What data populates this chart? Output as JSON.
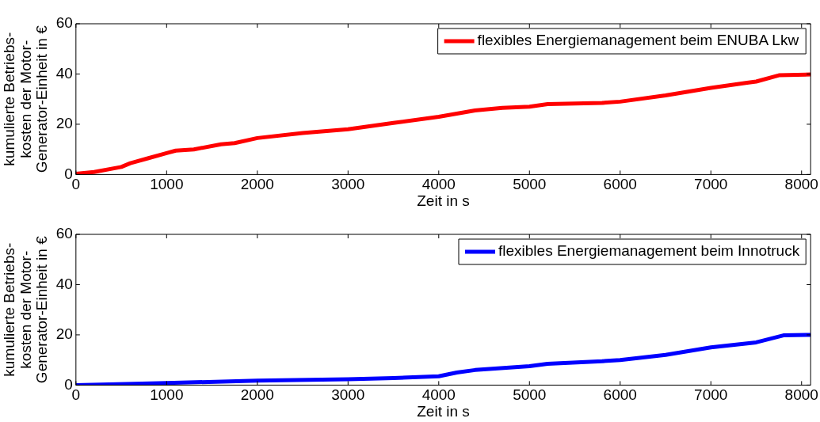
{
  "chart_data": [
    {
      "type": "line",
      "xlabel": "Zeit in s",
      "ylabel": "kumulierte Betriebs-\nkosten der Motor-\nGenerator-Einheit in €",
      "xlim": [
        0,
        8100
      ],
      "xticks": [
        0,
        1000,
        2000,
        3000,
        4000,
        5000,
        6000,
        7000,
        8000
      ],
      "ylim": [
        0,
        60
      ],
      "yticks": [
        0,
        20,
        40,
        60
      ],
      "legend": "top right",
      "grid": false,
      "marker": "none",
      "line_style": "solid",
      "series": [
        {
          "name": "flexibles Energiemanagement beim ENUBA Lkw",
          "color": "#ff0000",
          "x": [
            0,
            200,
            500,
            600,
            800,
            1000,
            1100,
            1300,
            1600,
            1750,
            2000,
            2500,
            3000,
            3500,
            4000,
            4400,
            4700,
            5000,
            5200,
            5800,
            6000,
            6500,
            7000,
            7400,
            7500,
            7750,
            8100
          ],
          "values": [
            0.3,
            1,
            3,
            4.5,
            6.5,
            8.5,
            9.5,
            10,
            12,
            12.5,
            14.5,
            16.5,
            18,
            20.5,
            23,
            25.5,
            26.5,
            27,
            28,
            28.5,
            29,
            31.5,
            34.5,
            36.5,
            37,
            39.5,
            39.8
          ]
        }
      ]
    },
    {
      "type": "line",
      "xlabel": "Zeit in s",
      "ylabel": "kumulierte Betriebs-\nkosten der Motor-\nGenerator-Einheit in €",
      "xlim": [
        0,
        8100
      ],
      "xticks": [
        0,
        1000,
        2000,
        3000,
        4000,
        5000,
        6000,
        7000,
        8000
      ],
      "ylim": [
        0,
        60
      ],
      "yticks": [
        0,
        20,
        40,
        60
      ],
      "legend": "top right",
      "grid": false,
      "marker": "none",
      "line_style": "solid",
      "series": [
        {
          "name": "flexibles Energiemanagement beim Innotruck",
          "color": "#0000ff",
          "x": [
            0,
            1000,
            2000,
            3000,
            3500,
            4000,
            4200,
            4400,
            5000,
            5200,
            5800,
            6000,
            6500,
            7000,
            7500,
            7800,
            8100
          ],
          "values": [
            0,
            0.8,
            1.8,
            2.3,
            2.8,
            3.5,
            5,
            6,
            7.5,
            8.5,
            9.5,
            10,
            12,
            15,
            17,
            19.8,
            20
          ]
        }
      ]
    }
  ]
}
